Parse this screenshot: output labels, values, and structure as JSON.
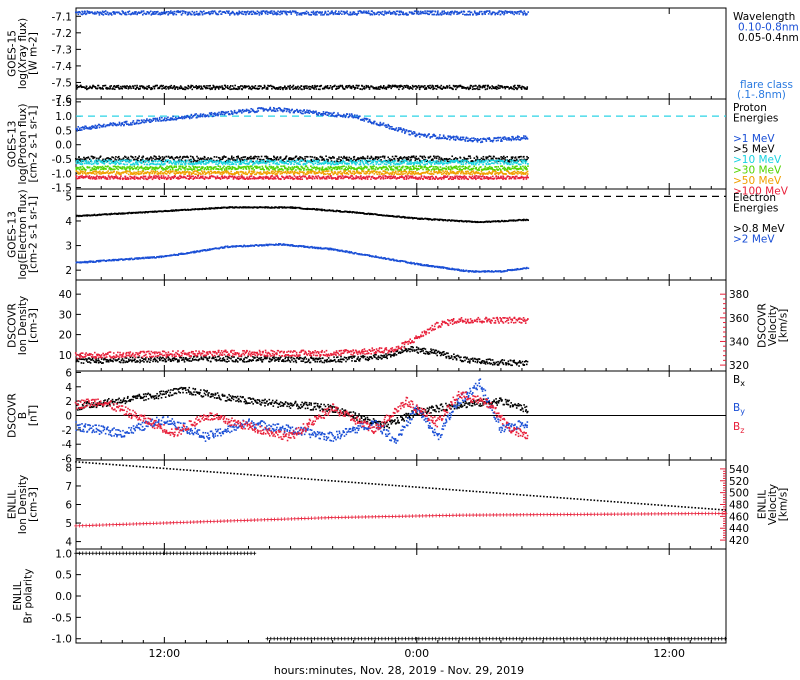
{
  "colors": {
    "black": "#000000",
    "blue": "#1a4fd6",
    "cyan": "#19d3e0",
    "green": "#55d400",
    "orange": "#f0a000",
    "red": "#e8203a",
    "dashed_cyan": "#2bd4e6",
    "flare_blue": "#2a7ae0"
  },
  "x_axis": {
    "label": "hours:minutes, Nov. 28, 2019 - Nov. 29, 2019",
    "ticks": [
      {
        "t": 12,
        "label": "12:00"
      },
      {
        "t": 24,
        "label": "0:00"
      },
      {
        "t": 36,
        "label": "12:00"
      }
    ],
    "range_hours": [
      7.8,
      38.7
    ],
    "data_end_hour": 29.3
  },
  "chart_data": [
    {
      "id": "xray",
      "type": "scatter",
      "ylabel": [
        "GOES-15",
        "log(Xray flux)",
        "[W m-2]"
      ],
      "ylim": [
        -7.6,
        -7.05
      ],
      "yticks": [
        -7.1,
        -7.2,
        -7.3,
        -7.4,
        -7.5,
        -7.6
      ],
      "ytick_labels": [
        "-7.1",
        "-7.2",
        "-7.3",
        "-7.4",
        "-7.5",
        "-7.6"
      ],
      "series": [
        {
          "name": "0.10-0.8nm",
          "color": "blue",
          "shape": [
            [
              7.8,
              -7.08
            ],
            [
              29.3,
              -7.08
            ]
          ],
          "noise": 0.012
        },
        {
          "name": "0.05-0.4nm",
          "color": "black",
          "shape": [
            [
              7.8,
              -7.53
            ],
            [
              29.3,
              -7.53
            ]
          ],
          "noise": 0.012
        }
      ],
      "legend": {
        "title": "Wavelength",
        "entries": [
          {
            "text": "0.10-0.8nm",
            "color": "blue"
          },
          {
            "text": "0.05-0.4nm",
            "color": "black"
          }
        ]
      },
      "flare_note": [
        "flare class",
        "(.1-.8nm)"
      ]
    },
    {
      "id": "proton",
      "type": "scatter",
      "ylabel": [
        "GOES-13",
        "log(Proton flux)",
        "[cm-2 s-1 sr-1]"
      ],
      "ylim": [
        -1.55,
        1.6
      ],
      "yticks": [
        1.5,
        1.0,
        0.5,
        0.0,
        -0.5,
        -1.0,
        -1.5
      ],
      "ytick_labels": [
        "1.5",
        "1.0",
        "0.5",
        "0.0",
        "-0.5",
        "-1.0",
        "-1.5"
      ],
      "threshold": 1.0,
      "series": [
        {
          "name": ">1 MeV",
          "color": "blue",
          "shape": [
            [
              7.8,
              0.55
            ],
            [
              12,
              0.9
            ],
            [
              17,
              1.25
            ],
            [
              21,
              1.0
            ],
            [
              24,
              0.35
            ],
            [
              27,
              0.15
            ],
            [
              29.3,
              0.25
            ]
          ],
          "noise": 0.07
        },
        {
          "name": ">5 MeV",
          "color": "black",
          "shape": [
            [
              7.8,
              -0.5
            ],
            [
              29.3,
              -0.5
            ]
          ],
          "noise": 0.1
        },
        {
          "name": ">10 MeV",
          "color": "cyan",
          "shape": [
            [
              7.8,
              -0.62
            ],
            [
              29.3,
              -0.62
            ]
          ],
          "noise": 0.08
        },
        {
          "name": ">30 MeV",
          "color": "green",
          "shape": [
            [
              7.8,
              -0.82
            ],
            [
              29.3,
              -0.82
            ]
          ],
          "noise": 0.07
        },
        {
          "name": ">50 MeV",
          "color": "orange",
          "shape": [
            [
              7.8,
              -0.98
            ],
            [
              29.3,
              -0.98
            ]
          ],
          "noise": 0.06
        },
        {
          "name": ">100 MeV",
          "color": "red",
          "shape": [
            [
              7.8,
              -1.15
            ],
            [
              29.3,
              -1.15
            ]
          ],
          "noise": 0.06
        }
      ],
      "legend": {
        "title": [
          "Proton",
          "Energies"
        ],
        "entries": [
          {
            "text": ">1 MeV",
            "color": "blue"
          },
          {
            "text": ">5 MeV",
            "color": "black"
          },
          {
            "text": ">10 MeV",
            "color": "cyan"
          },
          {
            "text": ">30 MeV",
            "color": "green"
          },
          {
            "text": ">50 MeV",
            "color": "orange"
          },
          {
            "text": ">100 MeV",
            "color": "red"
          }
        ]
      }
    },
    {
      "id": "electron",
      "type": "scatter",
      "ylabel": [
        "GOES-13",
        "log(Electron flux)",
        "[cm-2 s-1 sr-1]"
      ],
      "ylim": [
        1.6,
        5.3
      ],
      "yticks": [
        5,
        4,
        3,
        2
      ],
      "ytick_labels": [
        "5",
        "4",
        "3",
        "2"
      ],
      "threshold": 5.0,
      "series": [
        {
          "name": ">0.8 MeV",
          "color": "black",
          "shape": [
            [
              7.8,
              4.2
            ],
            [
              12,
              4.4
            ],
            [
              15,
              4.55
            ],
            [
              18,
              4.55
            ],
            [
              21,
              4.35
            ],
            [
              24,
              4.1
            ],
            [
              27,
              3.95
            ],
            [
              29.3,
              4.05
            ]
          ],
          "noise": 0.02
        },
        {
          "name": ">2 MeV",
          "color": "blue",
          "shape": [
            [
              7.8,
              2.3
            ],
            [
              12,
              2.55
            ],
            [
              15,
              2.95
            ],
            [
              17.5,
              3.05
            ],
            [
              20,
              2.85
            ],
            [
              24,
              2.25
            ],
            [
              26.5,
              1.95
            ],
            [
              28,
              1.95
            ],
            [
              29.3,
              2.1
            ]
          ],
          "noise": 0.025
        }
      ],
      "legend": {
        "title": [
          "Electron",
          "Energies"
        ],
        "entries": [
          {
            "text": ">0.8 MeV",
            "color": "black"
          },
          {
            "text": ">2 MeV",
            "color": "blue"
          }
        ]
      }
    },
    {
      "id": "dscovr_plasma",
      "type": "scatter",
      "ylabel": [
        "DSCOVR",
        "Ion Density",
        "[cm-3]"
      ],
      "ylim": [
        2,
        47
      ],
      "yticks": [
        40,
        30,
        20,
        10
      ],
      "ytick_labels": [
        "40",
        "30",
        "20",
        "10"
      ],
      "right_axis": {
        "label": [
          "DSCOVR",
          "Velocity",
          "[km/s]"
        ],
        "ylim": [
          315,
          392
        ],
        "ticks": [
          380,
          360,
          340,
          320
        ],
        "tick_labels": [
          "380",
          "360",
          "340",
          "320"
        ],
        "color": "red"
      },
      "series": [
        {
          "name": "Ion Density",
          "color": "black",
          "shape": [
            [
              7.8,
              7
            ],
            [
              14,
              8
            ],
            [
              20,
              7.5
            ],
            [
              22.5,
              9
            ],
            [
              23.5,
              13
            ],
            [
              25,
              11
            ],
            [
              26.5,
              7
            ],
            [
              29.3,
              5.5
            ]
          ],
          "noise": 1.4
        },
        {
          "name": "Velocity",
          "color": "red",
          "axis": "right",
          "shape": [
            [
              7.8,
              328
            ],
            [
              14,
              330
            ],
            [
              20,
              330
            ],
            [
              23,
              333
            ],
            [
              24,
              343
            ],
            [
              25,
              354
            ],
            [
              26,
              358
            ],
            [
              29.3,
              358
            ]
          ],
          "noise": 2.5
        }
      ]
    },
    {
      "id": "dscovr_mag",
      "type": "scatter",
      "ylabel": [
        "DSCOVR",
        "B",
        "[nT]"
      ],
      "ylim": [
        -6.2,
        6.2
      ],
      "yticks": [
        6,
        4,
        2,
        0,
        -2,
        -4,
        -6
      ],
      "ytick_labels": [
        "6",
        "4",
        "2",
        "0",
        "-2",
        "-4",
        "-6"
      ],
      "zero_line": true,
      "series": [
        {
          "name": "Bx",
          "color": "black",
          "shape": [
            [
              7.8,
              1.2
            ],
            [
              11,
              2.5
            ],
            [
              13,
              3.5
            ],
            [
              16,
              2.0
            ],
            [
              20,
              1.0
            ],
            [
              22.5,
              -1.5
            ],
            [
              24,
              0.5
            ],
            [
              26,
              1.5
            ],
            [
              28,
              2.0
            ],
            [
              29.3,
              0.8
            ]
          ],
          "noise": 0.5
        },
        {
          "name": "By",
          "color": "blue",
          "shape": [
            [
              7.8,
              -1.5
            ],
            [
              10,
              -2.5
            ],
            [
              12,
              -0.5
            ],
            [
              14,
              -3
            ],
            [
              16,
              -1
            ],
            [
              18,
              -2
            ],
            [
              20,
              -3
            ],
            [
              22,
              -1
            ],
            [
              23,
              -3.5
            ],
            [
              24,
              1
            ],
            [
              25,
              -3
            ],
            [
              26,
              2
            ],
            [
              27,
              4.5
            ],
            [
              28,
              -2
            ],
            [
              29.3,
              -1
            ]
          ],
          "noise": 0.6
        },
        {
          "name": "Bz",
          "color": "red",
          "shape": [
            [
              7.8,
              1.5
            ],
            [
              9,
              2
            ],
            [
              11,
              -0.5
            ],
            [
              12.5,
              -2.5
            ],
            [
              14,
              0
            ],
            [
              16,
              -1.5
            ],
            [
              18,
              -3
            ],
            [
              20,
              1
            ],
            [
              22,
              -2
            ],
            [
              23.5,
              2
            ],
            [
              25,
              -1
            ],
            [
              26,
              3
            ],
            [
              27.5,
              1.5
            ],
            [
              28.5,
              -2
            ],
            [
              29.3,
              -3
            ]
          ],
          "noise": 0.6
        }
      ],
      "legend": {
        "entries": [
          {
            "text": "B",
            "sub": "x",
            "color": "black"
          },
          {
            "text": "B",
            "sub": "y",
            "color": "blue"
          },
          {
            "text": "B",
            "sub": "z",
            "color": "red"
          }
        ]
      }
    },
    {
      "id": "enlil_plasma",
      "type": "scatter",
      "ylabel": [
        "ENLIL",
        "Ion Density",
        "[cm-3]"
      ],
      "ylim": [
        3.6,
        8.4
      ],
      "yticks": [
        8,
        7,
        6,
        5,
        4
      ],
      "ytick_labels": [
        "8",
        "7",
        "6",
        "5",
        "4"
      ],
      "right_axis": {
        "label": [
          "ENLIL",
          "Velocity",
          "[km/s]"
        ],
        "ylim": [
          405,
          555
        ],
        "ticks": [
          540,
          520,
          500,
          480,
          460,
          440,
          420
        ],
        "tick_labels": [
          "540",
          "520",
          "500",
          "480",
          "460",
          "440",
          "420"
        ],
        "color": "red"
      },
      "end_hour": 38.7,
      "series": [
        {
          "name": "Ion Density",
          "color": "black",
          "shape": [
            [
              7.8,
              8.3
            ],
            [
              38.7,
              5.7
            ]
          ],
          "noise": 0,
          "step": 0.16
        },
        {
          "name": "Velocity",
          "color": "red",
          "axis": "right",
          "shape": [
            [
              7.8,
              444
            ],
            [
              20,
              458
            ],
            [
              26,
              462
            ],
            [
              38.7,
              465
            ]
          ],
          "noise": 0,
          "step": 0.16,
          "marker": "plus"
        }
      ]
    },
    {
      "id": "enlil_polarity",
      "type": "scatter",
      "ylabel": [
        "ENLIL",
        "Br polarity"
      ],
      "ylim": [
        -1.1,
        1.1
      ],
      "yticks": [
        1.0,
        0.5,
        0.0,
        -0.5,
        -1.0
      ],
      "ytick_labels": [
        "1.0",
        "0.5",
        "0.0",
        "-0.5",
        "-1.0"
      ],
      "end_hour": 38.7,
      "series": [
        {
          "name": "Br polarity",
          "color": "black",
          "shape": [
            [
              7.8,
              1.0
            ],
            [
              16.4,
              1.0
            ]
          ],
          "noise": 0,
          "step": 0.16,
          "marker": "plus"
        },
        {
          "name": "Br polarity neg",
          "color": "black",
          "shape": [
            [
              16.9,
              -1.0
            ],
            [
              38.7,
              -1.0
            ]
          ],
          "noise": 0,
          "step": 0.16,
          "marker": "plus"
        }
      ]
    }
  ]
}
